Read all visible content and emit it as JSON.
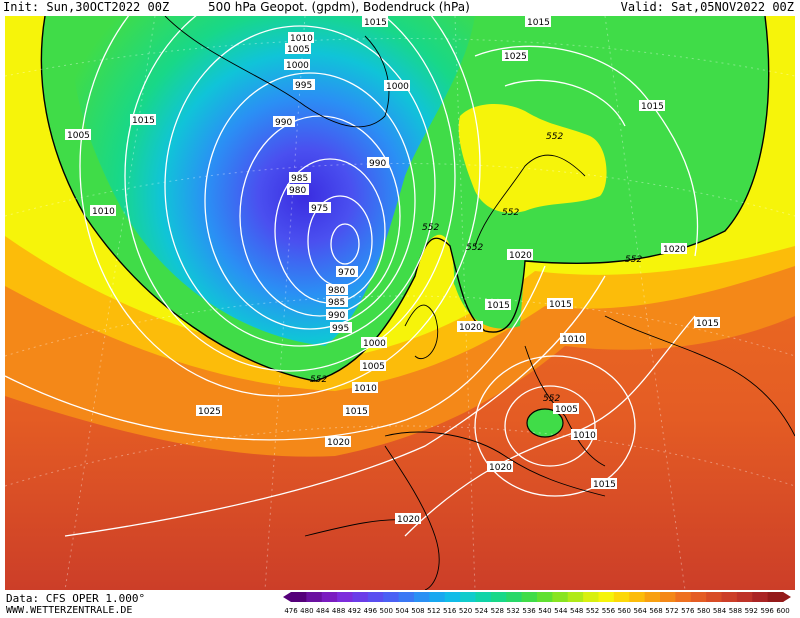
{
  "header": {
    "init": "Init: Sun,30OCT2022 00Z",
    "title": "500 hPa Geopot. (gpdm), Bodendruck (hPa)",
    "valid": "Valid: Sat,05NOV2022 00Z"
  },
  "footer": {
    "data_source": "Data: CFS OPER 1.000°",
    "website": "WWW.WETTERZENTRALE.DE"
  },
  "legend": {
    "values": [
      "476",
      "480",
      "484",
      "488",
      "492",
      "496",
      "500",
      "504",
      "508",
      "512",
      "516",
      "520",
      "524",
      "528",
      "532",
      "536",
      "540",
      "544",
      "548",
      "552",
      "556",
      "560",
      "564",
      "568",
      "572",
      "576",
      "580",
      "584",
      "588",
      "592",
      "596",
      "600"
    ],
    "colors": [
      "#55007a",
      "#6a10a0",
      "#7a1cc0",
      "#7c2cdc",
      "#6a3ce8",
      "#5a4ef0",
      "#4a60f4",
      "#3a78f4",
      "#2a90f4",
      "#18a8f0",
      "#10bce8",
      "#10cccc",
      "#10d4a8",
      "#18d888",
      "#28d868",
      "#40dc48",
      "#60e030",
      "#88e420",
      "#b0ea18",
      "#d8f010",
      "#f6f40a",
      "#fcd808",
      "#fcbc0a",
      "#f8a010",
      "#f48818",
      "#ee7020",
      "#e45c24",
      "#d84c26",
      "#cc3e28",
      "#be3228",
      "#aa2424",
      "#941a1a"
    ]
  },
  "pressure_labels": [
    "1015",
    "1010",
    "1005",
    "1000",
    "995",
    "990",
    "985",
    "980",
    "975",
    "970",
    "980",
    "985",
    "990",
    "995",
    "1000",
    "1005",
    "1010",
    "1015",
    "1020",
    "1025",
    "1015",
    "1005",
    "1010",
    "1015",
    "1025",
    "1015",
    "1020",
    "1020",
    "1015",
    "1010",
    "1020",
    "1015",
    "1010",
    "1005",
    "1020",
    "1015",
    "1020",
    "1000",
    "990",
    "1015"
  ],
  "geopot_labels": [
    "552",
    "552",
    "552",
    "552",
    "552",
    "552",
    "552"
  ],
  "colors": {
    "isobar": "#ffffff",
    "coast": "#000000",
    "geopot_contour": "#000000"
  }
}
